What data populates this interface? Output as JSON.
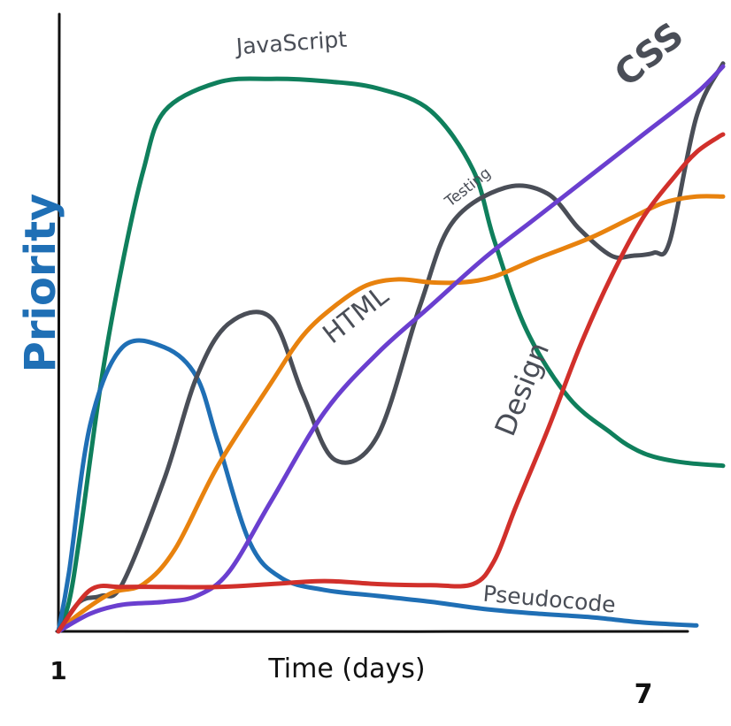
{
  "chart_data": {
    "type": "line",
    "title": "",
    "xlabel": "Time (days)",
    "ylabel": "Priority",
    "x_ticks": [
      "1",
      "7"
    ],
    "xlim": [
      1,
      7.25
    ],
    "ylim": [
      0,
      100
    ],
    "grid": false,
    "legend": "none (series labelled inline)",
    "series": [
      {
        "name": "JavaScript",
        "color": "#0f7f5c",
        "x": [
          1,
          1.1,
          1.2,
          1.4,
          1.6,
          1.8,
          2.0,
          2.5,
          3.0,
          3.5,
          4.0,
          4.5,
          4.9,
          5.1,
          5.4,
          5.8,
          6.2,
          6.4,
          6.6,
          6.9,
          7.25
        ],
        "y": [
          0,
          5,
          16,
          42,
          62,
          78,
          88,
          92.8,
          93.4,
          93.0,
          91.8,
          88.0,
          78.0,
          66.0,
          51.0,
          39.5,
          33.5,
          31.0,
          29.5,
          28.5,
          28.0
        ]
      },
      {
        "name": "Pseudocode",
        "color": "#1f6fb5",
        "x": [
          1,
          1.1,
          1.3,
          1.6,
          2.0,
          2.3,
          2.5,
          2.8,
          3.1,
          3.5,
          4.0,
          4.5,
          5.0,
          5.5,
          6.0,
          6.5,
          7.0
        ],
        "y": [
          0,
          10,
          35,
          48,
          48,
          43,
          32,
          15,
          9,
          7,
          6,
          5,
          3.8,
          3,
          2.4,
          1.5,
          1
        ]
      },
      {
        "name": "Testing",
        "color": "#4a4e57",
        "x": [
          1,
          1.2,
          1.4,
          1.6,
          2.0,
          2.3,
          2.6,
          3.0,
          3.3,
          3.6,
          4.0,
          4.4,
          4.7,
          5.2,
          5.6,
          5.9,
          6.2,
          6.4,
          6.6,
          6.75,
          7.0,
          7.25
        ],
        "y": [
          0,
          5,
          6,
          8,
          26,
          43,
          52,
          53,
          40,
          29,
          33,
          55,
          69,
          75,
          74,
          68,
          63.5,
          63.5,
          64,
          66,
          87,
          96
        ]
      },
      {
        "name": "HTML",
        "color": "#e8820e",
        "x": [
          1,
          1.2,
          1.5,
          1.8,
          2.1,
          2.5,
          3.0,
          3.3,
          3.6,
          3.9,
          4.2,
          4.5,
          4.8,
          5.1,
          5.5,
          6.0,
          6.4,
          6.7,
          7.0,
          7.25
        ],
        "y": [
          0,
          3,
          6.5,
          8,
          14,
          28,
          42,
          50,
          55,
          58.5,
          59.5,
          59,
          59,
          60,
          63,
          66.5,
          70,
          72.5,
          73.5,
          73.5
        ]
      },
      {
        "name": "CSS",
        "color": "#6a3fcf",
        "x": [
          1,
          1.3,
          1.6,
          2.0,
          2.3,
          2.6,
          3.0,
          3.5,
          4.0,
          4.5,
          5.0,
          5.5,
          6.0,
          6.5,
          7.0,
          7.25
        ],
        "y": [
          0,
          3,
          4.5,
          5,
          6,
          10,
          22,
          37,
          47,
          55,
          63,
          70,
          77,
          84,
          91,
          95.5
        ]
      },
      {
        "name": "Design",
        "color": "#d1302b",
        "x": [
          1,
          1.3,
          1.6,
          2.0,
          2.5,
          3.0,
          3.5,
          4.0,
          4.5,
          4.9,
          5.1,
          5.3,
          5.6,
          5.9,
          6.2,
          6.5,
          6.8,
          7.0,
          7.2,
          7.25
        ],
        "y": [
          0,
          7,
          7.5,
          7.5,
          7.5,
          8,
          8.5,
          8,
          7.8,
          8,
          12,
          21,
          34,
          48,
          60,
          70,
          77,
          81,
          83.5,
          84
        ]
      }
    ],
    "inline_labels": [
      "JavaScript",
      "Pseudocode",
      "Testing",
      "HTML",
      "CSS",
      "Design"
    ]
  }
}
